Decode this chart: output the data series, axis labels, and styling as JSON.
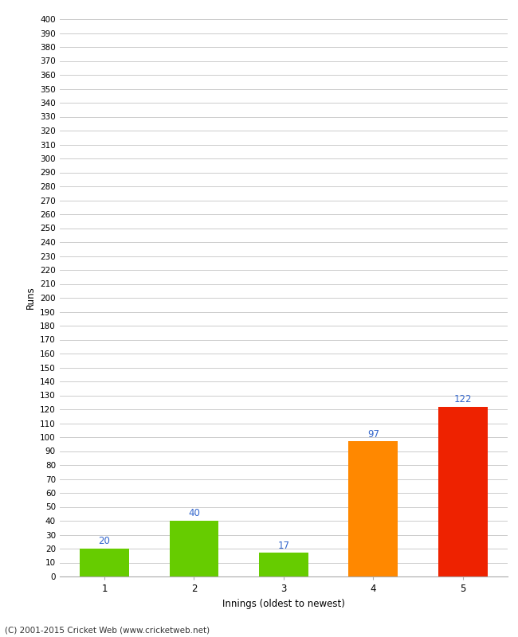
{
  "categories": [
    "1",
    "2",
    "3",
    "4",
    "5"
  ],
  "values": [
    20,
    40,
    17,
    97,
    122
  ],
  "bar_colors": [
    "#66cc00",
    "#66cc00",
    "#66cc00",
    "#ff8800",
    "#ee2200"
  ],
  "xlabel": "Innings (oldest to newest)",
  "ylabel": "Runs",
  "ylim": [
    0,
    400
  ],
  "ytick_step": 10,
  "value_label_color": "#3366cc",
  "background_color": "#ffffff",
  "plot_bg_color": "#ffffff",
  "grid_color": "#cccccc",
  "footer": "(C) 2001-2015 Cricket Web (www.cricketweb.net)"
}
